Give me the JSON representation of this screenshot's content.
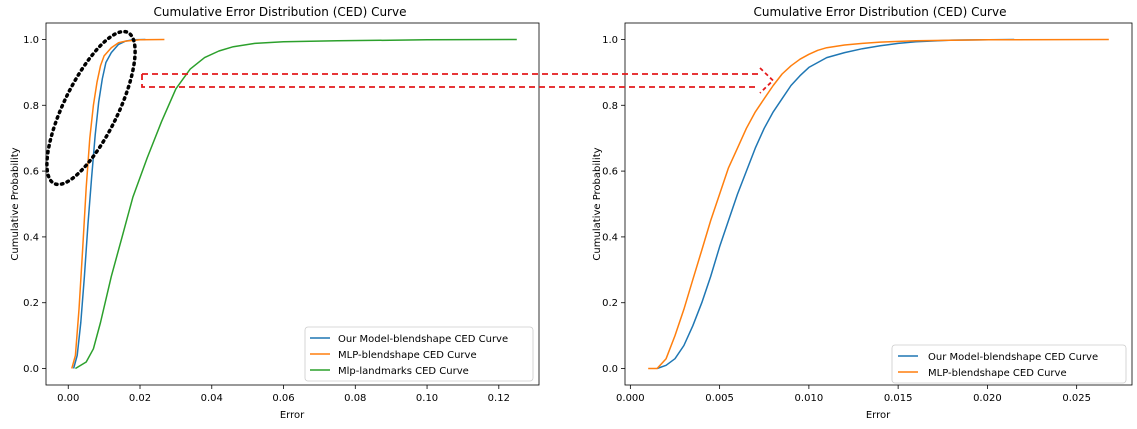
{
  "chart_data": [
    {
      "type": "line",
      "title": "Cumulative Error Distribution (CED) Curve",
      "xlabel": "Error",
      "ylabel": "Cumulative Probability",
      "xlim": [
        -0.0062,
        0.1312
      ],
      "ylim": [
        -0.05,
        1.05
      ],
      "xticks": [
        0.0,
        0.02,
        0.04,
        0.06,
        0.08,
        0.1,
        0.12
      ],
      "xtick_labels": [
        "0.00",
        "0.02",
        "0.04",
        "0.06",
        "0.08",
        "0.10",
        "0.12"
      ],
      "yticks": [
        0.0,
        0.2,
        0.4,
        0.6,
        0.8,
        1.0
      ],
      "ytick_labels": [
        "0.0",
        "0.2",
        "0.4",
        "0.6",
        "0.8",
        "1.0"
      ],
      "legend_position": "lower-right",
      "series": [
        {
          "name": "Our Model-blendshape CED Curve",
          "color": "#1f77b4",
          "x": [
            0.0015,
            0.0025,
            0.0035,
            0.0045,
            0.0055,
            0.0065,
            0.0075,
            0.0085,
            0.0095,
            0.0105,
            0.012,
            0.014,
            0.016,
            0.018,
            0.0215
          ],
          "y": [
            0.0,
            0.04,
            0.14,
            0.28,
            0.44,
            0.58,
            0.71,
            0.81,
            0.88,
            0.93,
            0.96,
            0.985,
            0.995,
            0.999,
            1.0
          ]
        },
        {
          "name": "MLP-blendshape CED Curve",
          "color": "#ff7f0e",
          "x": [
            0.001,
            0.002,
            0.003,
            0.004,
            0.005,
            0.006,
            0.007,
            0.008,
            0.009,
            0.01,
            0.012,
            0.014,
            0.016,
            0.02,
            0.0268
          ],
          "y": [
            0.0,
            0.04,
            0.18,
            0.36,
            0.55,
            0.7,
            0.8,
            0.87,
            0.92,
            0.95,
            0.975,
            0.99,
            0.995,
            0.999,
            1.0
          ]
        },
        {
          "name": "Mlp-landmarks CED Curve",
          "color": "#2ca02c",
          "x": [
            0.002,
            0.005,
            0.007,
            0.009,
            0.012,
            0.015,
            0.018,
            0.022,
            0.026,
            0.03,
            0.034,
            0.038,
            0.042,
            0.046,
            0.052,
            0.06,
            0.075,
            0.1,
            0.125
          ],
          "y": [
            0.0,
            0.02,
            0.06,
            0.14,
            0.28,
            0.4,
            0.52,
            0.64,
            0.75,
            0.85,
            0.91,
            0.945,
            0.965,
            0.978,
            0.988,
            0.993,
            0.996,
            0.999,
            1.0
          ]
        }
      ]
    },
    {
      "type": "line",
      "title": "Cumulative Error Distribution (CED) Curve",
      "xlabel": "Error",
      "ylabel": "Cumulative Probability",
      "xlim": [
        -0.0003,
        0.0281
      ],
      "ylim": [
        -0.05,
        1.05
      ],
      "xticks": [
        0.0,
        0.005,
        0.01,
        0.015,
        0.02,
        0.025
      ],
      "xtick_labels": [
        "0.000",
        "0.005",
        "0.010",
        "0.015",
        "0.020",
        "0.025"
      ],
      "yticks": [
        0.0,
        0.2,
        0.4,
        0.6,
        0.8,
        1.0
      ],
      "ytick_labels": [
        "0.0",
        "0.2",
        "0.4",
        "0.6",
        "0.8",
        "1.0"
      ],
      "legend_position": "lower-right",
      "series": [
        {
          "name": "Our Model-blendshape CED Curve",
          "color": "#1f77b4",
          "x": [
            0.0015,
            0.002,
            0.0025,
            0.003,
            0.0035,
            0.004,
            0.0045,
            0.005,
            0.0055,
            0.006,
            0.0065,
            0.007,
            0.0075,
            0.008,
            0.0085,
            0.009,
            0.0095,
            0.01,
            0.0105,
            0.011,
            0.012,
            0.013,
            0.014,
            0.015,
            0.016,
            0.018,
            0.0215
          ],
          "y": [
            0.0,
            0.01,
            0.03,
            0.07,
            0.13,
            0.2,
            0.28,
            0.37,
            0.45,
            0.53,
            0.6,
            0.67,
            0.73,
            0.78,
            0.82,
            0.86,
            0.89,
            0.915,
            0.93,
            0.945,
            0.96,
            0.972,
            0.981,
            0.988,
            0.993,
            0.998,
            1.0
          ]
        },
        {
          "name": "MLP-blendshape CED Curve",
          "color": "#ff7f0e",
          "x": [
            0.001,
            0.0015,
            0.002,
            0.0025,
            0.003,
            0.0035,
            0.004,
            0.0045,
            0.005,
            0.0055,
            0.006,
            0.0065,
            0.007,
            0.0075,
            0.008,
            0.0085,
            0.009,
            0.0095,
            0.01,
            0.0105,
            0.011,
            0.012,
            0.013,
            0.014,
            0.016,
            0.02,
            0.0268
          ],
          "y": [
            0.0,
            0.0,
            0.03,
            0.1,
            0.18,
            0.27,
            0.36,
            0.45,
            0.53,
            0.61,
            0.67,
            0.73,
            0.78,
            0.82,
            0.86,
            0.895,
            0.92,
            0.94,
            0.955,
            0.967,
            0.975,
            0.983,
            0.988,
            0.992,
            0.996,
            0.999,
            1.0
          ]
        }
      ]
    }
  ]
}
